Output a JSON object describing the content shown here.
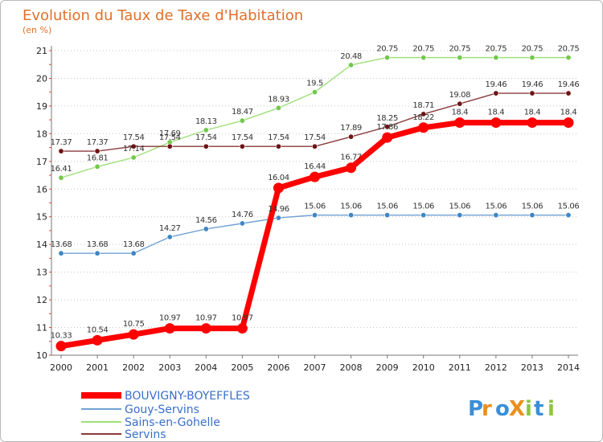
{
  "chart_data": {
    "type": "line",
    "title": "Evolution du Taux de Taxe d'Habitation",
    "subtitle": "(en %)",
    "x": [
      2000,
      2001,
      2002,
      2003,
      2004,
      2005,
      2006,
      2007,
      2008,
      2009,
      2010,
      2011,
      2012,
      2013,
      2014
    ],
    "x_tick_labels": [
      "2000",
      "2001",
      "2002",
      "2003",
      "2004",
      "2005",
      "2006",
      "2007",
      "2008",
      "2009",
      "2010",
      "2011",
      "2012",
      "2013",
      "2014"
    ],
    "ylim": [
      10,
      21
    ],
    "y_ticks": [
      10,
      11,
      12,
      13,
      14,
      15,
      16,
      17,
      18,
      19,
      20,
      21
    ],
    "y_tick_labels": [
      "10",
      "11",
      "12",
      "13",
      "14",
      "15",
      "16",
      "17",
      "18",
      "19",
      "20",
      "21"
    ],
    "grid": "horizontal-dotted",
    "legend": "bottom-left",
    "series": [
      {
        "name": "BOUVIGNY-BOYEFFLES",
        "color": "#ff0000",
        "marker": "#ff0000",
        "emphasis": true,
        "values": [
          10.33,
          10.54,
          10.75,
          10.97,
          10.97,
          10.97,
          16.04,
          16.44,
          16.77,
          17.86,
          18.22,
          18.4,
          18.4,
          18.4,
          18.4
        ],
        "labels": [
          "10.33",
          "10.54",
          "10.75",
          "10.97",
          "10.97",
          "10.97",
          "16.04",
          "16.44",
          "16.77",
          "17.86",
          "18.22",
          "18.4",
          "18.4",
          "18.4",
          "18.4"
        ]
      },
      {
        "name": "Gouy-Servins",
        "color": "#6fa1d3",
        "marker": "#3e86c5",
        "values": [
          13.68,
          13.68,
          13.68,
          14.27,
          14.56,
          14.76,
          14.96,
          15.06,
          15.06,
          15.06,
          15.06,
          15.06,
          15.06,
          15.06,
          15.06
        ],
        "labels": [
          "13.68",
          "13.68",
          "13.68",
          "14.27",
          "14.56",
          "14.76",
          "14.96",
          "15.06",
          "15.06",
          "15.06",
          "15.06",
          "15.06",
          "15.06",
          "15.06",
          "15.06"
        ]
      },
      {
        "name": "Sains-en-Gohelle",
        "color": "#9fe07a",
        "marker": "#72c94a",
        "values": [
          16.41,
          16.81,
          17.14,
          17.69,
          18.13,
          18.47,
          18.93,
          19.5,
          20.48,
          20.75,
          20.75,
          20.75,
          20.75,
          20.75,
          20.75
        ],
        "labels": [
          "16.41",
          "16.81",
          "17.14",
          "17.69",
          "18.13",
          "18.47",
          "18.93",
          "19.5",
          "20.48",
          "20.75",
          "20.75",
          "20.75",
          "20.75",
          "20.75",
          "20.75"
        ]
      },
      {
        "name": "Servins",
        "color": "#8a3a3a",
        "marker": "#6e1515",
        "values": [
          17.37,
          17.37,
          17.54,
          17.54,
          17.54,
          17.54,
          17.54,
          17.54,
          17.89,
          18.25,
          18.71,
          19.08,
          19.46,
          19.46,
          19.46
        ],
        "labels": [
          "17.37",
          "17.37",
          "17.54",
          "17.54",
          "17.54",
          "17.54",
          "17.54",
          "17.54",
          "17.89",
          "18.25",
          "18.71",
          "19.08",
          "19.46",
          "19.46",
          "19.46"
        ]
      }
    ]
  },
  "logo": {
    "text": "ProXiti",
    "letters": [
      "P",
      "r",
      "o",
      "X",
      "i",
      "t",
      "i"
    ],
    "colors": [
      "#3b8fd8",
      "#e8901c",
      "#3b8fd8",
      "#e8901c",
      "#8cc63f",
      "#3b8fd8",
      "#8cc63f"
    ]
  }
}
